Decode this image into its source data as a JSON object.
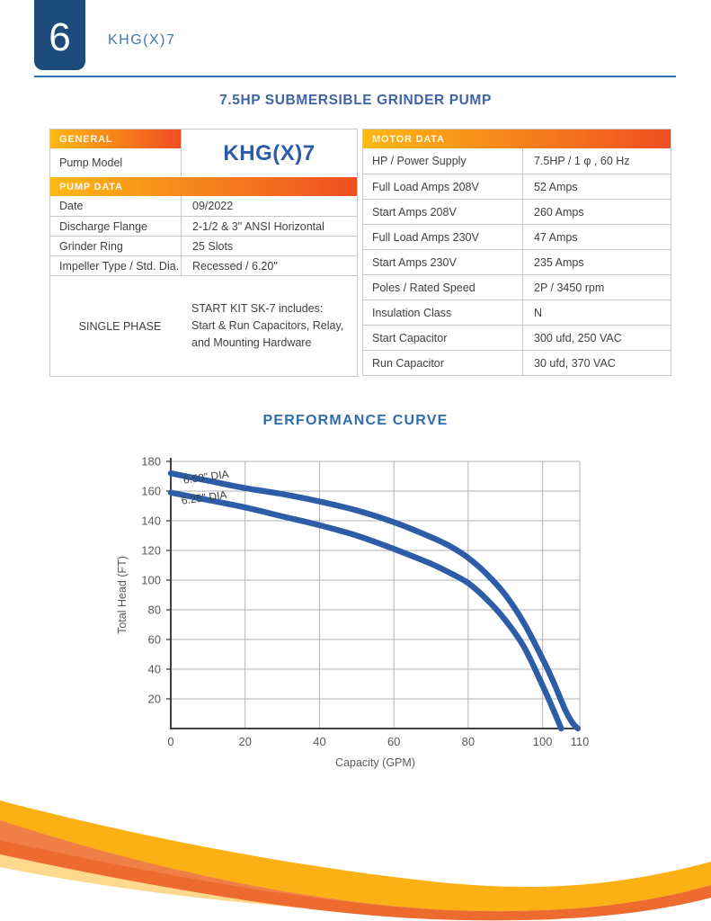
{
  "header": {
    "page_number": "6",
    "model_code": "KHG(X)7"
  },
  "title": "7.5HP SUBMERSIBLE GRINDER PUMP",
  "tables": {
    "general": {
      "header": "GENERAL",
      "pump_model_label": "Pump Model",
      "pump_model_value": "KHG(X)7"
    },
    "pump_data": {
      "header": "PUMP DATA",
      "rows": [
        {
          "label": "Date",
          "value": "09/2022"
        },
        {
          "label": "Discharge Flange",
          "value": "2-1/2 & 3\" ANSI Horizontal"
        },
        {
          "label": "Grinder Ring",
          "value": "25 Slots"
        },
        {
          "label": "Impeller Type / Std. Dia.",
          "value": "Recessed / 6.20\""
        }
      ],
      "single_phase": {
        "label": "SINGLE PHASE",
        "lines": [
          "START KIT SK-7 includes:",
          "Start & Run Capacitors, Relay,",
          "and Mounting Hardware"
        ]
      }
    },
    "motor_data": {
      "header": "MOTOR DATA",
      "rows": [
        {
          "label": "HP / Power Supply",
          "value": "7.5HP / 1 φ , 60 Hz"
        },
        {
          "label": "Full Load Amps 208V",
          "value": "52 Amps"
        },
        {
          "label": "Start Amps 208V",
          "value": "260 Amps"
        },
        {
          "label": "Full Load Amps 230V",
          "value": "47 Amps"
        },
        {
          "label": "Start Amps 230V",
          "value": "235 Amps"
        },
        {
          "label": "Poles / Rated Speed",
          "value": "2P / 3450 rpm"
        },
        {
          "label": "Insulation Class",
          "value": "N"
        },
        {
          "label": "Start Capacitor",
          "value": "300 ufd, 250 VAC"
        },
        {
          "label": "Run Capacitor",
          "value": "30 ufd, 370 VAC"
        }
      ]
    }
  },
  "performance_title": "PERFORMANCE CURVE",
  "chart_data": {
    "type": "line",
    "title": "PERFORMANCE CURVE",
    "xlabel": "Capacity (GPM)",
    "ylabel": "Total Head (FT)",
    "xlim": [
      0,
      110
    ],
    "ylim": [
      0,
      180
    ],
    "xticks": [
      0,
      20,
      40,
      60,
      80,
      100,
      110
    ],
    "yticks": [
      20,
      40,
      60,
      80,
      100,
      120,
      140,
      160,
      180
    ],
    "grid": true,
    "legend_position": "inline-labels-top-left",
    "series": [
      {
        "name": "6.50\" DIA",
        "label_at": [
          3.5,
          165
        ],
        "x": [
          0,
          10,
          20,
          30,
          40,
          50,
          60,
          70,
          75,
          80,
          85,
          90,
          95,
          100,
          103,
          106,
          108,
          109.5
        ],
        "y": [
          172,
          167,
          162,
          158,
          153,
          147,
          139,
          129,
          123,
          115,
          104,
          90,
          71,
          47,
          31,
          13,
          4,
          0
        ]
      },
      {
        "name": "6.25\" DIA",
        "label_at": [
          3,
          151
        ],
        "x": [
          0,
          10,
          20,
          30,
          40,
          50,
          60,
          70,
          75,
          80,
          85,
          90,
          95,
          100,
          103,
          105
        ],
        "y": [
          159,
          154,
          149,
          143,
          137,
          130,
          121,
          111,
          105,
          98,
          87,
          73,
          55,
          29,
          12,
          0
        ]
      }
    ]
  },
  "colors": {
    "navy_tab": "#1d4c7c",
    "header_blue": "#4577b0",
    "title_blue": "#3f63a7",
    "curve_blue": "#2d5da7",
    "gradient_start": "#fdb814",
    "gradient_end": "#ef4e23",
    "wave_gold": "#fbb014",
    "wave_orange": "#ed6b2f",
    "wave_pale": "#fed98d"
  }
}
